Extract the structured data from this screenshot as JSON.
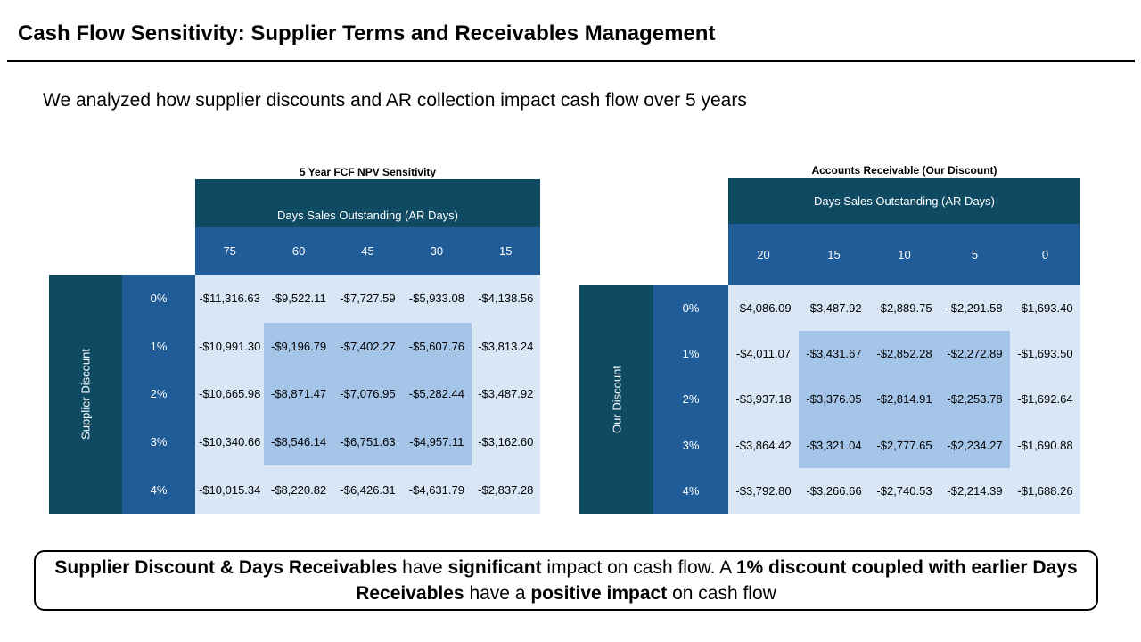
{
  "slide": {
    "title": "Cash Flow Sensitivity: Supplier Terms and Receivables Management",
    "subtitle": "We analyzed how supplier discounts and AR collection impact cash flow over 5 years"
  },
  "tables": [
    {
      "title": "5 Year FCF NPV Sensitivity",
      "column_group_label": "Days Sales Outstanding (AR Days)",
      "row_group_label": "Supplier Discount",
      "columns": [
        "75",
        "60",
        "45",
        "30",
        "15"
      ],
      "rows": [
        "0%",
        "1%",
        "2%",
        "3%",
        "4%"
      ],
      "values": [
        [
          "-$11,316.63",
          "-$9,522.11",
          "-$7,727.59",
          "-$5,933.08",
          "-$4,138.56"
        ],
        [
          "-$10,991.30",
          "-$9,196.79",
          "-$7,402.27",
          "-$5,607.76",
          "-$3,813.24"
        ],
        [
          "-$10,665.98",
          "-$8,871.47",
          "-$7,076.95",
          "-$5,282.44",
          "-$3,487.92"
        ],
        [
          "-$10,340.66",
          "-$8,546.14",
          "-$6,751.63",
          "-$4,957.11",
          "-$3,162.60"
        ],
        [
          "-$10,015.34",
          "-$8,220.82",
          "-$6,426.31",
          "-$4,631.79",
          "-$2,837.28"
        ]
      ]
    },
    {
      "title": "Accounts Receivable (Our Discount)",
      "column_group_label": "Days Sales Outstanding (AR Days)",
      "row_group_label": "Our Discount",
      "columns": [
        "20",
        "15",
        "10",
        "5",
        "0"
      ],
      "rows": [
        "0%",
        "1%",
        "2%",
        "3%",
        "4%"
      ],
      "values": [
        [
          "-$4,086.09",
          "-$3,487.92",
          "-$2,889.75",
          "-$2,291.58",
          "-$1,693.40"
        ],
        [
          "-$4,011.07",
          "-$3,431.67",
          "-$2,852.28",
          "-$2,272.89",
          "-$1,693.50"
        ],
        [
          "-$3,937.18",
          "-$3,376.05",
          "-$2,814.91",
          "-$2,253.78",
          "-$1,692.64"
        ],
        [
          "-$3,864.42",
          "-$3,321.04",
          "-$2,777.65",
          "-$2,234.27",
          "-$1,690.88"
        ],
        [
          "-$3,792.80",
          "-$3,266.66",
          "-$2,740.53",
          "-$2,214.39",
          "-$1,688.26"
        ]
      ]
    }
  ],
  "callout": [
    {
      "text": "Supplier Discount & Days Receivables",
      "bold": true
    },
    {
      "text": " have ",
      "bold": false
    },
    {
      "text": "significant",
      "bold": true
    },
    {
      "text": " impact on cash flow. A ",
      "bold": false
    },
    {
      "text": "1% discount coupled with earlier Days Receivables",
      "bold": true
    },
    {
      "text": " have a ",
      "bold": false
    },
    {
      "text": "positive impact",
      "bold": true
    },
    {
      "text": " on cash flow",
      "bold": false
    }
  ],
  "colors": {
    "dark_header": "#0f4a63",
    "mid_header": "#1f5c98",
    "cell_background": "#d8e6f5",
    "highlight": "#a4c4e8"
  }
}
